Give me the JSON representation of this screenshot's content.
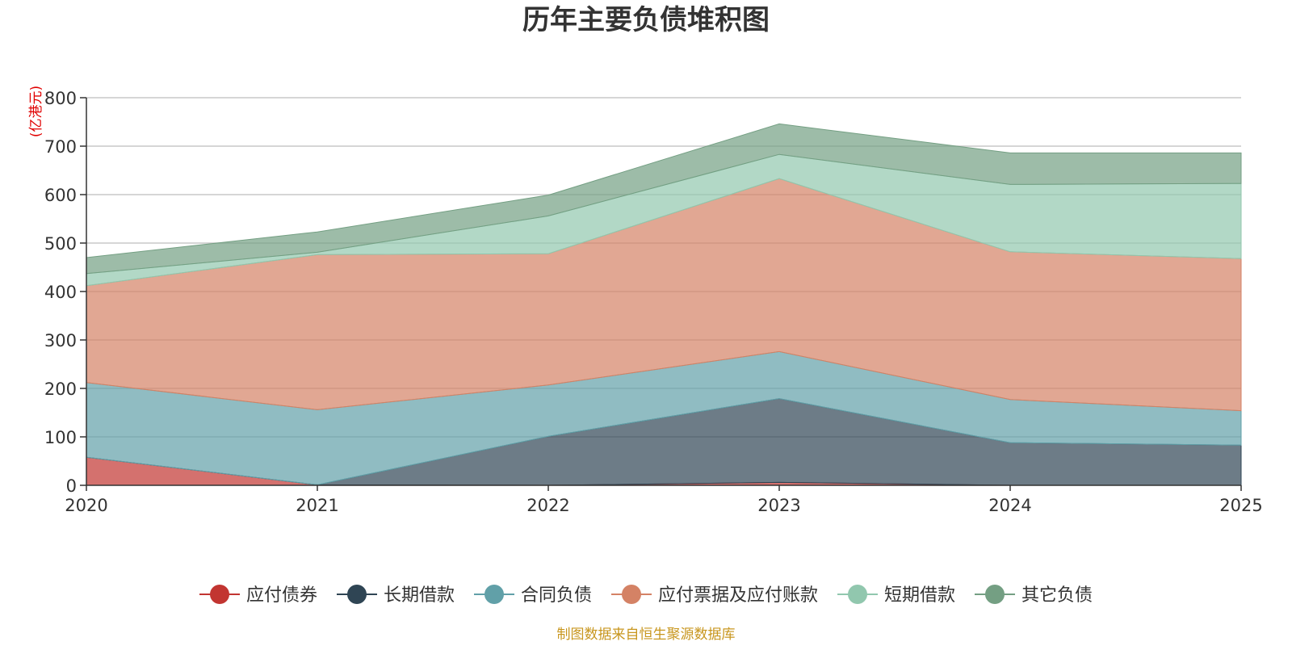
{
  "chart_data": {
    "type": "area",
    "stacked": true,
    "title": "历年主要负债堆积图",
    "ylabel": "(亿港元)",
    "xlabel": "",
    "categories": [
      "2020",
      "2021",
      "2022",
      "2023",
      "2024",
      "2025"
    ],
    "ylim": [
      0,
      800
    ],
    "yticks": [
      0,
      100,
      200,
      300,
      400,
      500,
      600,
      700,
      800
    ],
    "grid": true,
    "legend_position": "bottom",
    "series": [
      {
        "name": "应付债券",
        "color": "#c23531",
        "values": [
          58,
          1,
          0,
          6,
          0,
          0
        ]
      },
      {
        "name": "长期借款",
        "color": "#2f4554",
        "values": [
          0,
          0,
          101,
          173,
          88,
          83
        ]
      },
      {
        "name": "合同负债",
        "color": "#61a0a8",
        "values": [
          154,
          155,
          106,
          97,
          89,
          71
        ]
      },
      {
        "name": "应付票据及应付账款",
        "color": "#d48265",
        "values": [
          200,
          320,
          271,
          357,
          305,
          314
        ]
      },
      {
        "name": "短期借款",
        "color": "#91c7ae",
        "values": [
          25,
          5,
          78,
          50,
          139,
          155
        ]
      },
      {
        "name": "其它负债",
        "color": "#749f83",
        "values": [
          33,
          42,
          43,
          63,
          65,
          63
        ]
      }
    ]
  },
  "source_note": "制图数据来自恒生聚源数据库"
}
